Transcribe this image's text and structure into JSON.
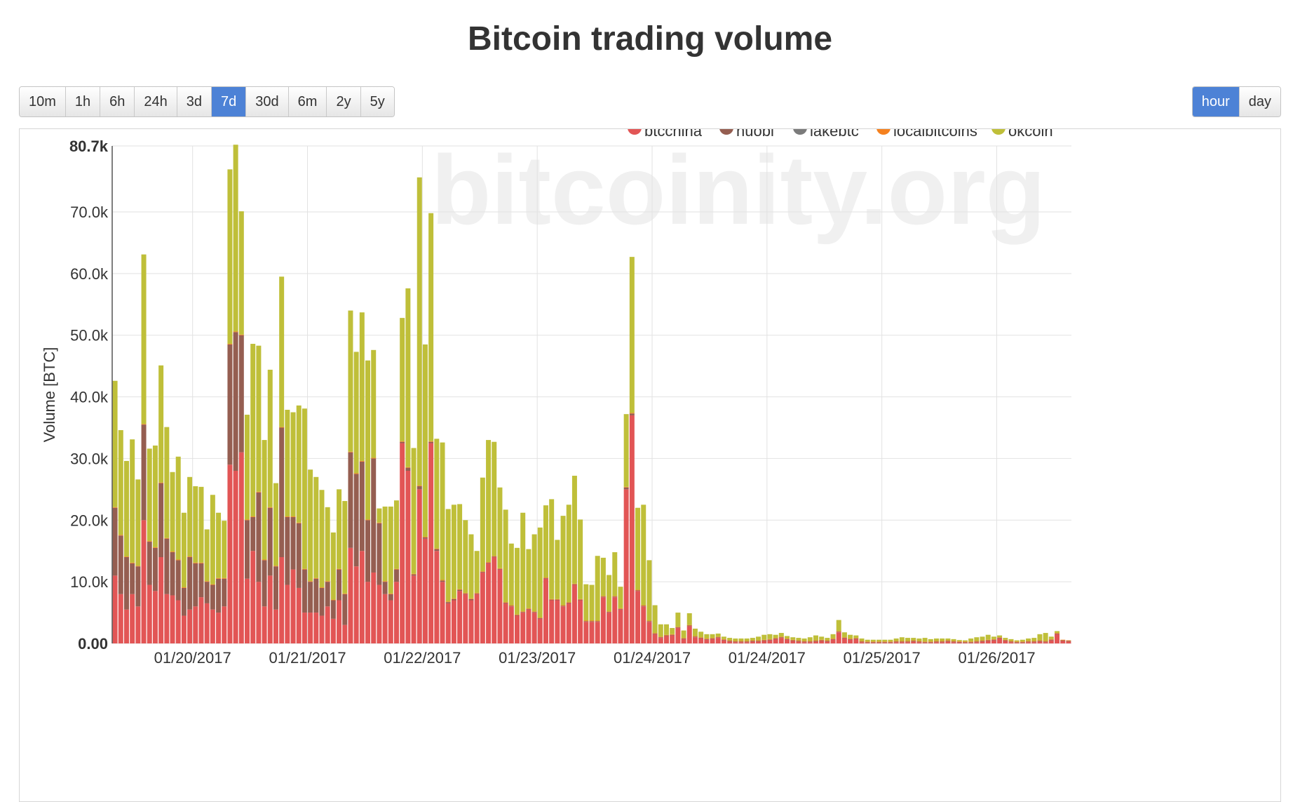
{
  "title": "Bitcoin trading volume",
  "range_buttons": [
    {
      "label": "10m",
      "active": false
    },
    {
      "label": "1h",
      "active": false
    },
    {
      "label": "6h",
      "active": false
    },
    {
      "label": "24h",
      "active": false
    },
    {
      "label": "3d",
      "active": false
    },
    {
      "label": "7d",
      "active": true
    },
    {
      "label": "30d",
      "active": false
    },
    {
      "label": "6m",
      "active": false
    },
    {
      "label": "2y",
      "active": false
    },
    {
      "label": "5y",
      "active": false
    }
  ],
  "granularity_buttons": [
    {
      "label": "hour",
      "active": true
    },
    {
      "label": "day",
      "active": false
    }
  ],
  "watermark": "bitcoinity.org",
  "chart_data": {
    "type": "bar",
    "stacked": true,
    "ylabel": "Volume [BTC]",
    "ylim": [
      0,
      80700
    ],
    "yticks": [
      {
        "value": 0,
        "label": "0.00"
      },
      {
        "value": 10000,
        "label": "10.0k"
      },
      {
        "value": 20000,
        "label": "20.0k"
      },
      {
        "value": 30000,
        "label": "30.0k"
      },
      {
        "value": 40000,
        "label": "40.0k"
      },
      {
        "value": 50000,
        "label": "50.0k"
      },
      {
        "value": 60000,
        "label": "60.0k"
      },
      {
        "value": 70000,
        "label": "70.0k"
      },
      {
        "value": 80700,
        "label": "80.7k"
      }
    ],
    "xticks": [
      {
        "index": 14,
        "label": "01/20/2017"
      },
      {
        "index": 34,
        "label": "01/21/2017"
      },
      {
        "index": 54,
        "label": "01/22/2017"
      },
      {
        "index": 74,
        "label": "01/23/2017"
      },
      {
        "index": 94,
        "label": "01/24/2017"
      },
      {
        "index": 114,
        "label": "01/24/2017"
      },
      {
        "index": 134,
        "label": "01/25/2017"
      },
      {
        "index": 154,
        "label": "01/26/2017"
      }
    ],
    "grid": true,
    "legend_position": "top-right",
    "series": [
      {
        "name": "btcchina",
        "color": "#e25555",
        "values": [
          11000,
          8000,
          5500,
          8000,
          6000,
          20000,
          9500,
          8500,
          14000,
          8000,
          7800,
          7000,
          4500,
          5500,
          6000,
          7500,
          6500,
          5500,
          5000,
          6000,
          29000,
          28000,
          31000,
          10500,
          15000,
          10000,
          6000,
          11000,
          5500,
          14000,
          9500,
          12000,
          9000,
          5000,
          5000,
          5000,
          4500,
          6000,
          4000,
          7000,
          3000,
          15500,
          12500,
          15000,
          10000,
          11500,
          9500,
          8000,
          7000,
          10000,
          32500,
          28000,
          11000,
          25000,
          17000,
          32500,
          15000,
          10000,
          6500,
          7000,
          8500,
          8000,
          7000,
          8000,
          11500,
          13000,
          14000,
          12000,
          6500,
          6000,
          4500,
          5000,
          5500,
          5000,
          4000,
          10500,
          7000,
          7000,
          6000,
          6500,
          9500,
          7000,
          3500,
          3500,
          3500,
          7500,
          5000,
          7500,
          5500,
          25000,
          37000,
          8500,
          6000,
          3500,
          1500,
          900,
          1200,
          1300,
          2500,
          700,
          2800,
          1000,
          800,
          600,
          700,
          900,
          500,
          300,
          200,
          200,
          200,
          300,
          300,
          400,
          500,
          700,
          900,
          600,
          400,
          300,
          200,
          200,
          300,
          400,
          300,
          600,
          1800,
          800,
          600,
          700,
          200,
          100,
          100,
          100,
          100,
          100,
          200,
          200,
          200,
          300,
          200,
          100,
          100,
          200,
          200,
          300,
          200,
          150,
          100,
          100,
          200,
          300,
          400,
          500,
          800,
          400,
          200,
          100,
          100,
          200,
          200,
          300,
          200,
          500,
          1500,
          400,
          300
        ]
      },
      {
        "name": "huobi",
        "color": "#955e51",
        "values": [
          11000,
          9500,
          8500,
          5000,
          6500,
          15500,
          7000,
          7000,
          12000,
          9000,
          7000,
          6500,
          4500,
          8500,
          7000,
          5500,
          3500,
          4000,
          5500,
          4500,
          19500,
          22500,
          19000,
          9500,
          5500,
          14500,
          7500,
          11000,
          7000,
          21000,
          11000,
          8500,
          10500,
          7000,
          5000,
          5500,
          4500,
          4000,
          3000,
          5000,
          5000,
          15500,
          15000,
          14500,
          10000,
          18500,
          10000,
          2000,
          1000,
          2000,
          200,
          500,
          200,
          500,
          200,
          200,
          300,
          200,
          200,
          200,
          200,
          100,
          200,
          100,
          100,
          100,
          100,
          100,
          100,
          100,
          100,
          100,
          100,
          100,
          100,
          100,
          100,
          100,
          100,
          100,
          100,
          100,
          100,
          100,
          100,
          100,
          100,
          100,
          100,
          300,
          300,
          100,
          100,
          100,
          100,
          100,
          100,
          100,
          100,
          100,
          100,
          100,
          100,
          100,
          100,
          100,
          100,
          100,
          100,
          100,
          100,
          100,
          100,
          100,
          100,
          100,
          100,
          100,
          100,
          100,
          100,
          100,
          100,
          100,
          100,
          100,
          100,
          100,
          100,
          100,
          100,
          100,
          100,
          100,
          100,
          100,
          100,
          100,
          100,
          100,
          100,
          100,
          100,
          100,
          100,
          100,
          100,
          100,
          100,
          100,
          100,
          100,
          100,
          100,
          100,
          100,
          100,
          100,
          100,
          100,
          100,
          100,
          100,
          100,
          100,
          100,
          100,
          100
        ]
      },
      {
        "name": "lakebtc",
        "color": "#7b7b7b",
        "values": [
          0,
          0,
          0,
          0,
          0,
          0,
          0,
          0,
          0,
          0,
          0,
          0,
          0,
          0,
          0,
          0,
          0,
          0,
          0,
          0,
          0,
          0,
          0,
          0,
          0,
          0,
          0,
          0,
          0,
          0,
          0,
          0,
          0,
          0,
          0,
          0,
          0,
          0,
          0,
          0,
          0,
          0,
          0,
          0,
          0,
          0,
          0,
          0,
          0,
          0,
          0,
          0,
          0,
          0,
          0,
          0,
          0,
          0,
          0,
          0,
          0,
          0,
          0,
          0,
          0,
          0,
          0,
          0,
          0,
          0,
          0,
          0,
          0,
          0,
          0,
          0,
          0,
          0,
          0,
          0,
          0,
          0,
          0,
          0,
          0,
          0,
          0,
          0,
          0,
          0,
          0,
          0,
          0,
          0,
          0,
          0,
          0,
          0,
          0,
          0,
          0,
          0,
          0,
          0,
          0,
          0,
          0,
          0,
          0,
          0,
          0,
          0,
          0,
          0,
          0,
          0,
          0,
          0,
          0,
          0,
          0,
          0,
          0,
          0,
          0,
          0,
          0,
          0,
          0,
          0,
          0,
          0,
          0,
          0,
          0,
          0,
          0,
          0,
          0,
          0,
          0,
          0,
          0,
          0,
          0,
          0,
          0,
          0,
          0,
          0,
          0,
          0,
          0,
          0,
          0,
          0,
          0,
          0,
          0,
          0,
          0,
          0,
          0,
          0,
          0,
          0,
          0,
          0
        ]
      },
      {
        "name": "localbitcoins",
        "color": "#f5811f",
        "values": [
          100,
          100,
          100,
          100,
          100,
          100,
          100,
          100,
          100,
          100,
          100,
          100,
          100,
          100,
          100,
          100,
          100,
          100,
          100,
          100,
          100,
          100,
          100,
          100,
          100,
          100,
          100,
          100,
          100,
          100,
          100,
          100,
          100,
          100,
          100,
          100,
          100,
          100,
          100,
          100,
          100,
          100,
          100,
          100,
          100,
          100,
          100,
          100,
          100,
          100,
          100,
          100,
          100,
          100,
          100,
          100,
          100,
          100,
          100,
          100,
          100,
          100,
          100,
          100,
          100,
          100,
          100,
          100,
          100,
          100,
          100,
          100,
          100,
          100,
          100,
          100,
          100,
          100,
          100,
          100,
          100,
          100,
          100,
          100,
          100,
          100,
          100,
          100,
          100,
          100,
          100,
          100,
          100,
          100,
          100,
          100,
          100,
          100,
          100,
          100,
          100,
          100,
          100,
          100,
          100,
          100,
          100,
          100,
          100,
          100,
          100,
          100,
          100,
          100,
          100,
          100,
          100,
          100,
          100,
          100,
          100,
          100,
          100,
          100,
          100,
          100,
          100,
          100,
          100,
          100,
          100,
          100,
          100,
          100,
          100,
          100,
          100,
          100,
          100,
          100,
          100,
          100,
          100,
          100,
          100,
          100,
          100,
          100,
          100,
          100,
          100,
          100,
          100,
          100,
          100,
          100,
          100,
          100,
          100,
          100,
          100,
          100,
          100,
          100,
          100,
          100,
          100,
          100
        ]
      },
      {
        "name": "okcoin",
        "color": "#bfbf39",
        "values": [
          20500,
          17000,
          15500,
          20000,
          14000,
          27500,
          15000,
          16500,
          19000,
          18000,
          12900,
          16700,
          12100,
          12900,
          12400,
          12300,
          8400,
          14500,
          10600,
          9300,
          28300,
          30300,
          20000,
          17000,
          28000,
          23700,
          19400,
          22300,
          13400,
          24400,
          17300,
          16900,
          19000,
          26000,
          18100,
          16400,
          15800,
          12000,
          10900,
          12900,
          15000,
          22900,
          19700,
          24100,
          25800,
          17500,
          2300,
          12100,
          14100,
          11100,
          20000,
          29000,
          20400,
          50000,
          31200,
          37000,
          17800,
          22300,
          15000,
          15200,
          13800,
          11800,
          10400,
          6800,
          15200,
          19800,
          18500,
          13100,
          15000,
          10000,
          10800,
          16000,
          9600,
          12500,
          14600,
          11700,
          16200,
          9600,
          14500,
          15800,
          17500,
          12900,
          5900,
          5800,
          10500,
          6200,
          5900,
          7100,
          3500,
          11800,
          25300,
          13300,
          16300,
          9800,
          4500,
          2000,
          1700,
          1000,
          2300,
          1200,
          1900,
          1200,
          900,
          700,
          600,
          500,
          400,
          400,
          400,
          400,
          400,
          400,
          600,
          800,
          800,
          500,
          600,
          400,
          400,
          400,
          400,
          600,
          800,
          500,
          400,
          700,
          1800,
          800,
          600,
          400,
          400,
          300,
          300,
          300,
          300,
          300,
          400,
          600,
          500,
          400,
          400,
          600,
          400,
          400,
          400,
          300,
          300,
          200,
          200,
          500,
          600,
          600,
          800,
          400,
          300,
          300,
          300,
          200,
          300,
          400,
          500,
          1000,
          1300,
          400,
          300
        ]
      }
    ]
  }
}
